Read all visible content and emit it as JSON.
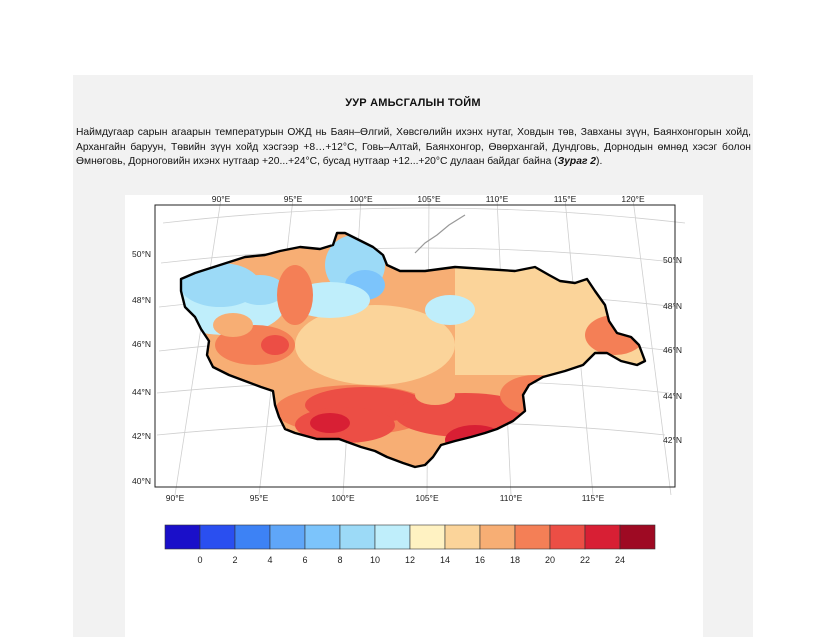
{
  "document": {
    "title": "УУР АМЬСГАЛЫН ТОЙМ",
    "paragraph_before": "Наймдугаар сарын агаарын температурын ОЖД нь Баян–Өлгий, Хөвсгөлийн ихэнх нутаг, Ховдын төв, Завханы зүүн, Баянхонгорын хойд, Архангайн баруун, Төвийн зүүн хойд хэсгээр +8…+12°C, Говь–Алтай, Баянхонгор, Өвөрхангай, Дундговь, Дорнодын өмнөд хэсэг болон Өмнөговь, Дорноговийн ихэнх нутгаар +20...+24°C, бусад нутгаар +12...+20°C дулаан байдаг байна (",
    "figure_ref": "Зураг 2",
    "paragraph_after": ")."
  },
  "map": {
    "top_lon_labels": [
      "90°E",
      "95°E",
      "100°E",
      "105°E",
      "110°E",
      "115°E",
      "120°E"
    ],
    "bottom_lon_labels": [
      "90°E",
      "95°E",
      "100°E",
      "105°E",
      "110°E",
      "115°E"
    ],
    "left_lat_labels": [
      "50°N",
      "48°N",
      "46°N",
      "44°N",
      "42°N",
      "40°N"
    ],
    "right_lat_labels": [
      "50°N",
      "48°N",
      "46°N",
      "44°N",
      "42°N"
    ]
  },
  "colorbar": {
    "colors": [
      "#1a0fc9",
      "#2a4ff0",
      "#3d82f5",
      "#5fa6f8",
      "#7cc4fb",
      "#9cdaf7",
      "#bfeefb",
      "#fff2c2",
      "#fbd49a",
      "#f7ae74",
      "#f47f56",
      "#ec4e45",
      "#d81f34",
      "#9e0a23"
    ],
    "tick_labels": [
      "0",
      "2",
      "4",
      "6",
      "8",
      "10",
      "12",
      "14",
      "16",
      "18",
      "20",
      "22",
      "24"
    ]
  }
}
